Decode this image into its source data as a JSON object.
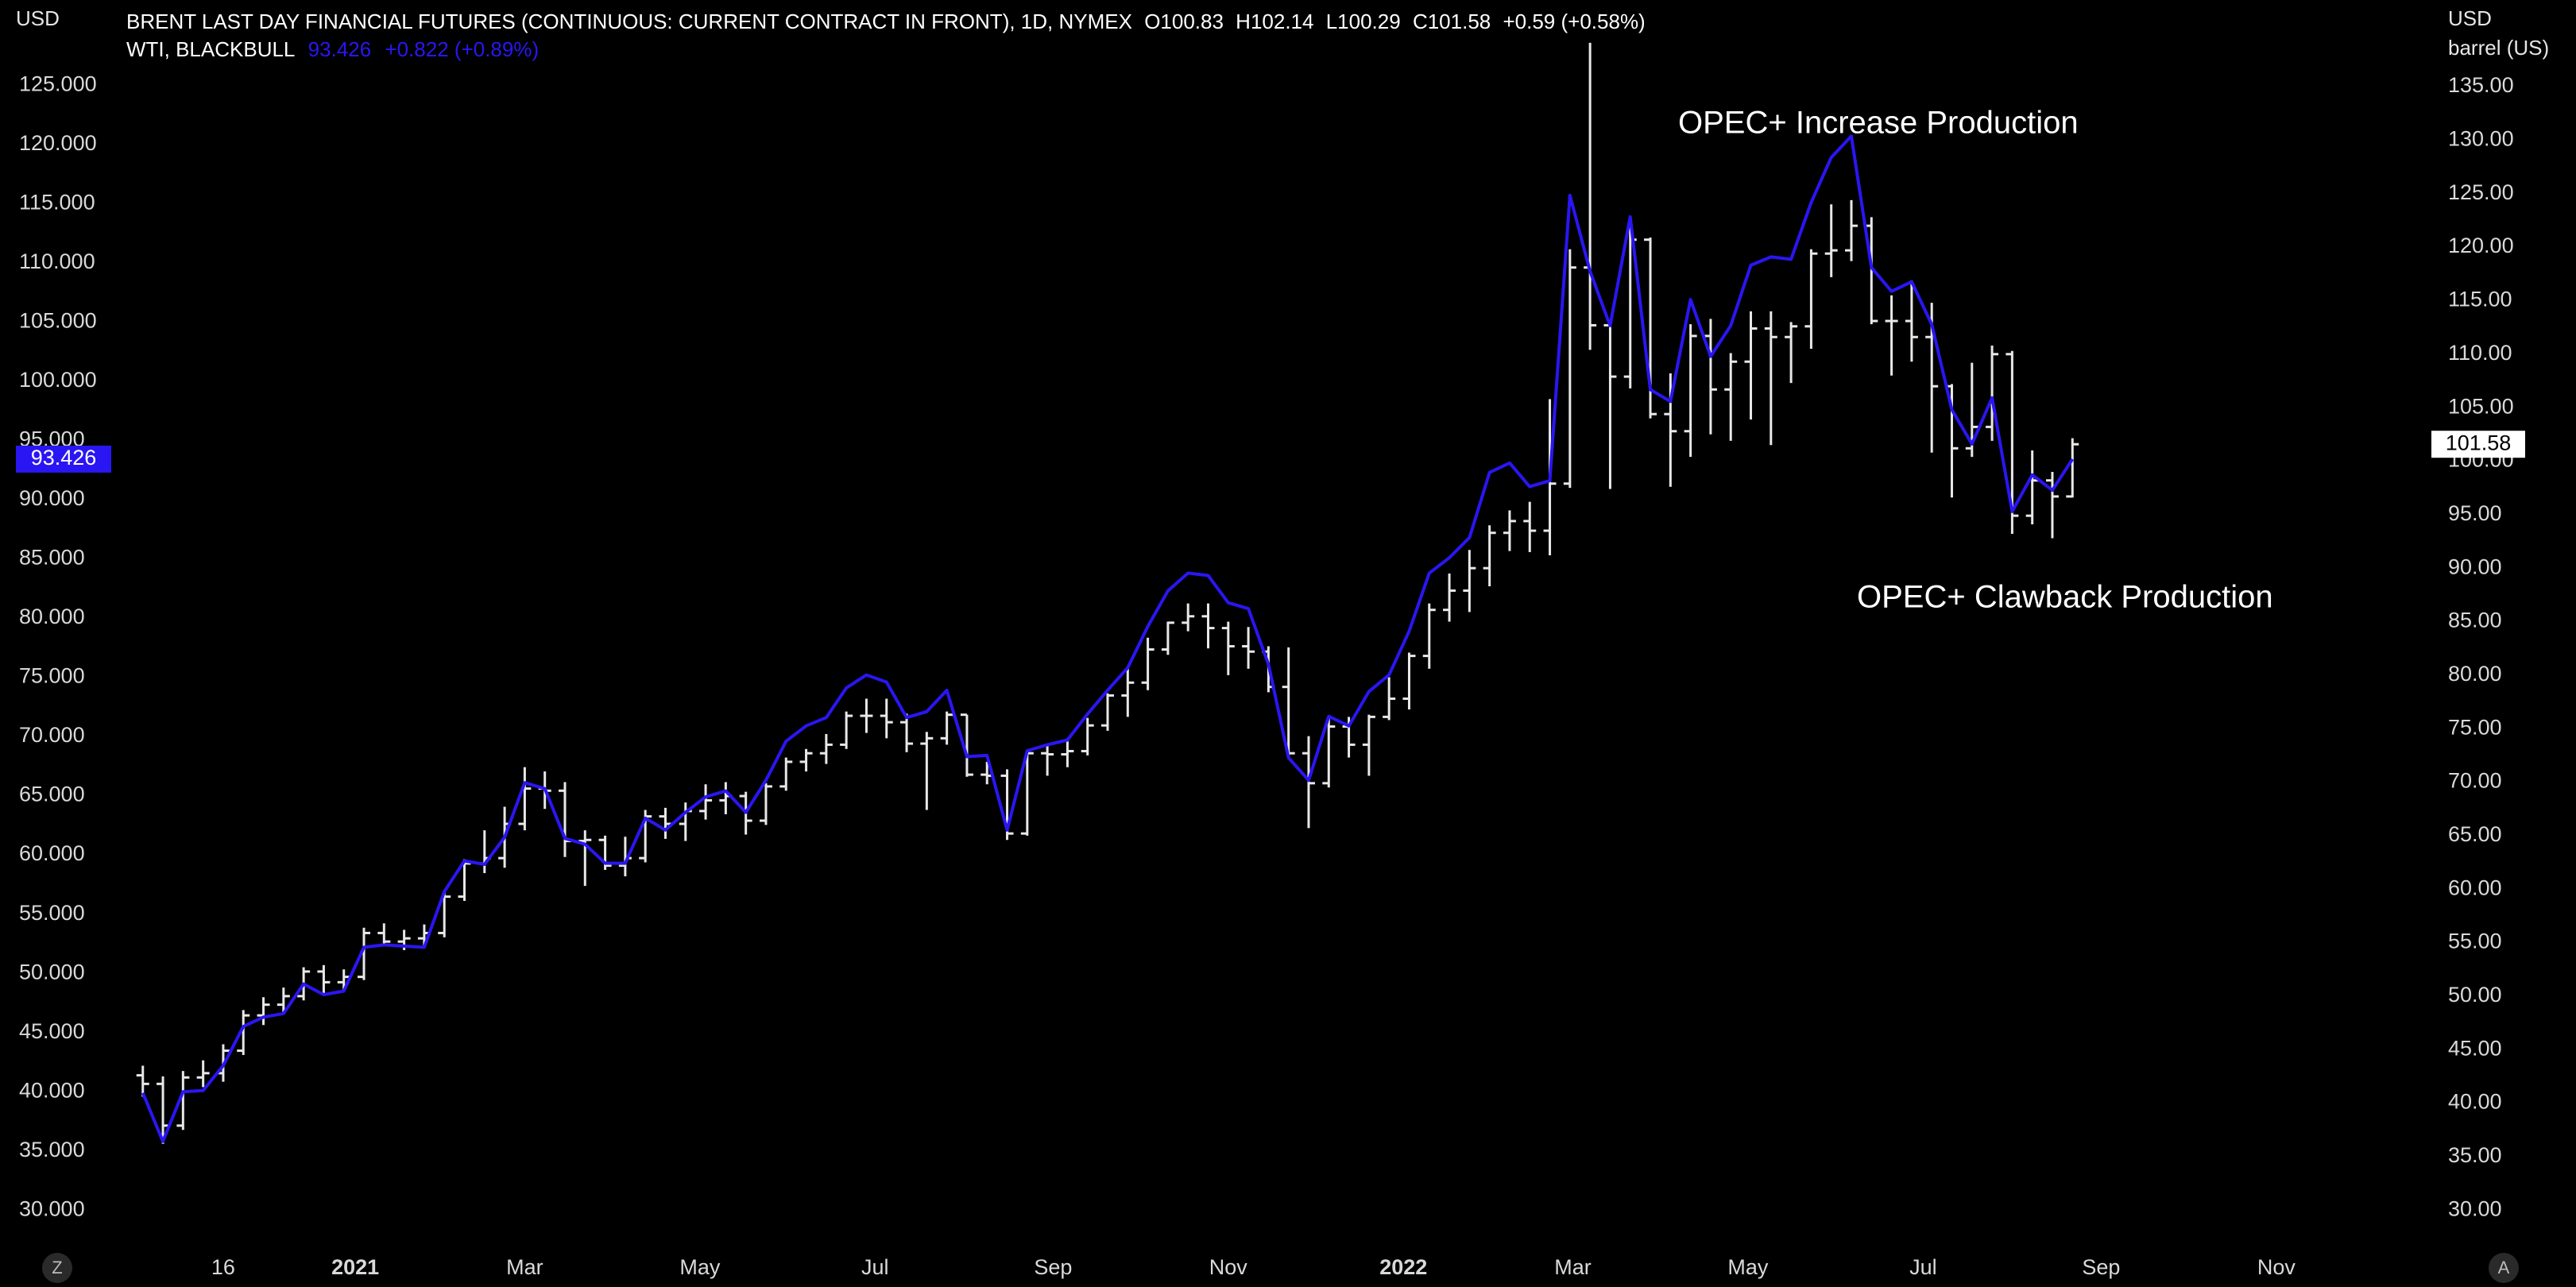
{
  "chart_data": {
    "type": "ohlc",
    "y_axis_label": "USD",
    "y2_axis_label": [
      "USD",
      "barrel (US)"
    ],
    "xlim": [
      "2020-10-08",
      "2022-12-25"
    ],
    "xticks": [
      {
        "value": "2020-11-16",
        "label": "16"
      },
      {
        "value": "2021-01-01",
        "label": "2021"
      },
      {
        "value": "2021-03-01",
        "label": "Mar"
      },
      {
        "value": "2021-05-01",
        "label": "May"
      },
      {
        "value": "2021-07-01",
        "label": "Jul"
      },
      {
        "value": "2021-09-01",
        "label": "Sep"
      },
      {
        "value": "2021-11-01",
        "label": "Nov"
      },
      {
        "value": "2022-01-01",
        "label": "2022"
      },
      {
        "value": "2022-03-01",
        "label": "Mar"
      },
      {
        "value": "2022-05-01",
        "label": "May"
      },
      {
        "value": "2022-07-01",
        "label": "Jul"
      },
      {
        "value": "2022-09-01",
        "label": "Sep"
      },
      {
        "value": "2022-11-01",
        "label": "Nov"
      }
    ],
    "ylim": [
      27.2,
      132.2
    ],
    "yticks": [
      {
        "value": 30,
        "label": "30.000"
      },
      {
        "value": 35,
        "label": "35.000"
      },
      {
        "value": 40,
        "label": "40.000"
      },
      {
        "value": 45,
        "label": "45.000"
      },
      {
        "value": 50,
        "label": "50.000"
      },
      {
        "value": 55,
        "label": "55.000"
      },
      {
        "value": 60,
        "label": "60.000"
      },
      {
        "value": 65,
        "label": "65.000"
      },
      {
        "value": 70,
        "label": "70.000"
      },
      {
        "value": 75,
        "label": "75.000"
      },
      {
        "value": 80,
        "label": "80.000"
      },
      {
        "value": 85,
        "label": "85.000"
      },
      {
        "value": 90,
        "label": "90.000"
      },
      {
        "value": 95,
        "label": "95.000"
      },
      {
        "value": 100,
        "label": "100.000"
      },
      {
        "value": 105,
        "label": "105.000"
      },
      {
        "value": 110,
        "label": "110.000"
      },
      {
        "value": 115,
        "label": "115.000"
      },
      {
        "value": 120,
        "label": "120.000"
      },
      {
        "value": 125,
        "label": "125.000"
      }
    ],
    "y2lim": [
      26.9,
      143.1
    ],
    "y2ticks": [
      {
        "value": 30,
        "label": "30.00"
      },
      {
        "value": 35,
        "label": "35.00"
      },
      {
        "value": 40,
        "label": "40.00"
      },
      {
        "value": 45,
        "label": "45.00"
      },
      {
        "value": 50,
        "label": "50.00"
      },
      {
        "value": 55,
        "label": "55.00"
      },
      {
        "value": 60,
        "label": "60.00"
      },
      {
        "value": 65,
        "label": "65.00"
      },
      {
        "value": 70,
        "label": "70.00"
      },
      {
        "value": 75,
        "label": "75.00"
      },
      {
        "value": 80,
        "label": "80.00"
      },
      {
        "value": 85,
        "label": "85.00"
      },
      {
        "value": 90,
        "label": "90.00"
      },
      {
        "value": 95,
        "label": "95.00"
      },
      {
        "value": 100,
        "label": "100.00"
      },
      {
        "value": 105,
        "label": "105.00"
      },
      {
        "value": 110,
        "label": "110.00"
      },
      {
        "value": 115,
        "label": "115.00"
      },
      {
        "value": 120,
        "label": "120.00"
      },
      {
        "value": 125,
        "label": "125.00"
      },
      {
        "value": 130,
        "label": "130.00"
      },
      {
        "value": 135,
        "label": "135.00"
      }
    ],
    "grid": false,
    "annotations": [
      "OPEC+ Increase Production",
      "OPEC+ Clawback Production"
    ],
    "x": [
      "2020-10-19",
      "2020-10-26",
      "2020-11-02",
      "2020-11-09",
      "2020-11-16",
      "2020-11-23",
      "2020-11-30",
      "2020-12-07",
      "2020-12-14",
      "2020-12-21",
      "2020-12-28",
      "2021-01-04",
      "2021-01-11",
      "2021-01-18",
      "2021-01-25",
      "2021-02-01",
      "2021-02-08",
      "2021-02-15",
      "2021-02-22",
      "2021-03-01",
      "2021-03-08",
      "2021-03-15",
      "2021-03-22",
      "2021-03-29",
      "2021-04-05",
      "2021-04-12",
      "2021-04-19",
      "2021-04-26",
      "2021-05-03",
      "2021-05-10",
      "2021-05-17",
      "2021-05-24",
      "2021-05-31",
      "2021-06-07",
      "2021-06-14",
      "2021-06-21",
      "2021-06-28",
      "2021-07-05",
      "2021-07-12",
      "2021-07-19",
      "2021-07-26",
      "2021-08-02",
      "2021-08-09",
      "2021-08-16",
      "2021-08-23",
      "2021-08-30",
      "2021-09-06",
      "2021-09-13",
      "2021-09-20",
      "2021-09-27",
      "2021-10-04",
      "2021-10-11",
      "2021-10-18",
      "2021-10-25",
      "2021-11-01",
      "2021-11-08",
      "2021-11-15",
      "2021-11-22",
      "2021-11-29",
      "2021-12-06",
      "2021-12-13",
      "2021-12-20",
      "2021-12-27",
      "2022-01-03",
      "2022-01-10",
      "2022-01-17",
      "2022-01-24",
      "2022-01-31",
      "2022-02-07",
      "2022-02-14",
      "2022-02-21",
      "2022-02-28",
      "2022-03-07",
      "2022-03-14",
      "2022-03-21",
      "2022-03-28",
      "2022-04-04",
      "2022-04-11",
      "2022-04-18",
      "2022-04-25",
      "2022-05-02",
      "2022-05-09",
      "2022-05-16",
      "2022-05-23",
      "2022-05-30",
      "2022-06-06",
      "2022-06-13",
      "2022-06-20",
      "2022-06-27",
      "2022-07-04",
      "2022-07-11",
      "2022-07-18",
      "2022-07-25",
      "2022-08-01",
      "2022-08-08",
      "2022-08-15",
      "2022-08-22"
    ],
    "series": [
      {
        "name": "BRENT LAST DAY FINANCIAL FUTURES (CONTINUOUS: CURRENT CONTRACT IN FRONT), 1D, NYMEX",
        "stats": [
          "O100.83",
          "H102.14",
          "L100.29",
          "C101.58",
          "+0.59 (+0.58%)"
        ],
        "color": "#e8e8e8",
        "axis": "y2",
        "open": [
          42.6,
          41.8,
          37.9,
          42.4,
          42.8,
          44.9,
          48.2,
          49.2,
          50.0,
          52.3,
          51.3,
          51.8,
          55.9,
          55.1,
          55.4,
          55.9,
          59.3,
          62.4,
          62.9,
          66.1,
          69.4,
          69.2,
          64.5,
          64.6,
          62.2,
          62.9,
          66.8,
          66.1,
          67.3,
          68.3,
          68.7,
          66.4,
          69.6,
          71.9,
          72.7,
          73.5,
          76.2,
          76.2,
          75.6,
          73.6,
          74.1,
          76.3,
          70.7,
          70.6,
          65.2,
          72.7,
          72.6,
          72.9,
          75.3,
          78.1,
          79.3,
          82.4,
          84.9,
          85.5,
          84.4,
          82.7,
          82.2,
          78.9,
          72.7,
          69.9,
          75.2,
          73.5,
          76.1,
          77.8,
          81.8,
          86.1,
          87.9,
          90.0,
          93.3,
          94.4,
          93.5,
          97.9,
          118.1,
          112.7,
          107.9,
          120.7,
          104.4,
          102.8,
          111.7,
          106.7,
          109.3,
          112.4,
          111.6,
          112.6,
          119.4,
          119.7,
          122.0,
          113.1,
          113.1,
          111.6,
          107.0,
          101.2,
          103.2,
          110.0,
          94.9,
          98.2,
          96.7
        ],
        "high": [
          43.5,
          42.5,
          43.0,
          44.0,
          45.5,
          48.7,
          49.9,
          50.8,
          52.7,
          52.9,
          52.5,
          56.4,
          56.8,
          56.2,
          56.7,
          59.8,
          62.8,
          65.5,
          67.7,
          71.4,
          71.0,
          70.0,
          65.5,
          65.0,
          64.9,
          67.4,
          67.6,
          68.1,
          69.8,
          70.0,
          69.1,
          69.9,
          72.3,
          73.1,
          74.5,
          76.6,
          77.8,
          77.8,
          76.4,
          74.7,
          76.6,
          76.3,
          71.9,
          71.2,
          72.8,
          73.5,
          73.9,
          76.0,
          78.3,
          80.8,
          83.5,
          85.0,
          86.7,
          86.7,
          85.0,
          84.5,
          82.7,
          82.6,
          74.3,
          76.1,
          76.1,
          76.3,
          79.8,
          82.1,
          86.7,
          89.5,
          91.7,
          94.0,
          95.4,
          96.2,
          105.8,
          119.8,
          139.1,
          113.2,
          122.0,
          120.9,
          108.2,
          112.8,
          113.3,
          110.1,
          114.0,
          114.0,
          113.0,
          119.8,
          124.0,
          124.4,
          122.8,
          115.5,
          116.9,
          114.8,
          107.2,
          109.2,
          110.8,
          110.3,
          101.0,
          99.0,
          102.14
        ],
        "low": [
          40.6,
          36.2,
          37.5,
          41.5,
          42.0,
          44.5,
          47.3,
          48.5,
          49.6,
          50.2,
          50.5,
          51.5,
          54.8,
          54.3,
          54.6,
          55.5,
          58.9,
          61.5,
          62.0,
          65.5,
          67.5,
          63.0,
          60.3,
          61.8,
          61.2,
          62.5,
          64.7,
          64.5,
          66.5,
          67.0,
          65.1,
          66.0,
          69.2,
          71.0,
          71.7,
          73.1,
          74.6,
          74.1,
          72.8,
          67.4,
          73.5,
          70.5,
          69.8,
          64.6,
          65.0,
          70.6,
          71.4,
          72.5,
          74.8,
          76.1,
          78.6,
          81.9,
          84.1,
          82.5,
          80.0,
          80.6,
          78.4,
          72.2,
          65.7,
          69.5,
          72.3,
          70.6,
          75.8,
          76.8,
          80.6,
          85.0,
          85.9,
          88.3,
          91.6,
          91.5,
          91.2,
          97.5,
          110.4,
          97.4,
          106.8,
          104.0,
          97.6,
          100.4,
          102.5,
          101.9,
          103.9,
          101.5,
          107.3,
          110.5,
          117.2,
          118.7,
          112.8,
          108.0,
          109.3,
          100.8,
          96.6,
          100.4,
          101.9,
          93.2,
          94.1,
          92.8,
          96.6
        ],
        "close": [
          41.8,
          37.9,
          42.4,
          42.8,
          44.9,
          48.2,
          49.2,
          50.0,
          52.3,
          51.3,
          51.8,
          55.9,
          55.1,
          55.4,
          55.9,
          59.3,
          62.4,
          62.9,
          66.1,
          69.4,
          69.2,
          64.5,
          64.6,
          62.2,
          62.9,
          66.8,
          66.1,
          67.3,
          68.3,
          68.7,
          66.4,
          69.6,
          71.9,
          72.7,
          73.5,
          76.2,
          76.2,
          75.6,
          73.6,
          74.1,
          76.3,
          70.7,
          70.6,
          65.2,
          72.7,
          72.6,
          72.9,
          75.3,
          78.1,
          79.3,
          82.4,
          84.9,
          85.5,
          84.4,
          82.7,
          82.2,
          78.9,
          72.7,
          69.9,
          75.2,
          73.5,
          76.1,
          77.8,
          81.8,
          86.1,
          87.9,
          90.0,
          93.3,
          94.4,
          93.5,
          97.9,
          118.1,
          112.7,
          107.9,
          120.7,
          104.4,
          102.8,
          111.7,
          106.7,
          109.3,
          112.4,
          111.6,
          112.6,
          119.4,
          119.7,
          122.0,
          113.1,
          113.1,
          111.6,
          107.0,
          101.2,
          103.2,
          110.0,
          94.9,
          98.2,
          96.7,
          101.58
        ]
      },
      {
        "name": "WTI, BLACKBULL",
        "change": "+0.822 (+0.89%)",
        "color": "#2a16f2",
        "axis": "y",
        "values": [
          39.9,
          35.8,
          40.0,
          40.1,
          42.2,
          45.5,
          46.3,
          46.6,
          49.1,
          48.2,
          48.5,
          52.2,
          52.4,
          52.3,
          52.2,
          56.9,
          59.5,
          59.2,
          61.5,
          66.1,
          65.6,
          61.4,
          60.9,
          59.3,
          59.3,
          63.1,
          62.1,
          63.6,
          64.9,
          65.4,
          63.6,
          66.3,
          69.6,
          70.9,
          71.6,
          74.1,
          75.2,
          74.6,
          71.6,
          72.1,
          73.9,
          68.3,
          68.4,
          62.1,
          68.8,
          69.3,
          69.7,
          71.9,
          73.9,
          75.8,
          79.3,
          82.3,
          83.8,
          83.6,
          81.3,
          80.8,
          76.1,
          68.2,
          66.3,
          71.7,
          70.9,
          73.8,
          75.2,
          78.9,
          83.8,
          85.1,
          86.8,
          92.3,
          93.1,
          91.1,
          91.6,
          115.7,
          109.3,
          104.7,
          113.9,
          99.3,
          98.3,
          106.9,
          102.1,
          104.7,
          109.8,
          110.5,
          110.3,
          115.1,
          118.9,
          120.7,
          109.6,
          107.6,
          108.4,
          104.8,
          97.6,
          94.7,
          98.6,
          89.0,
          92.1,
          90.8,
          93.426
        ]
      }
    ]
  }
}
